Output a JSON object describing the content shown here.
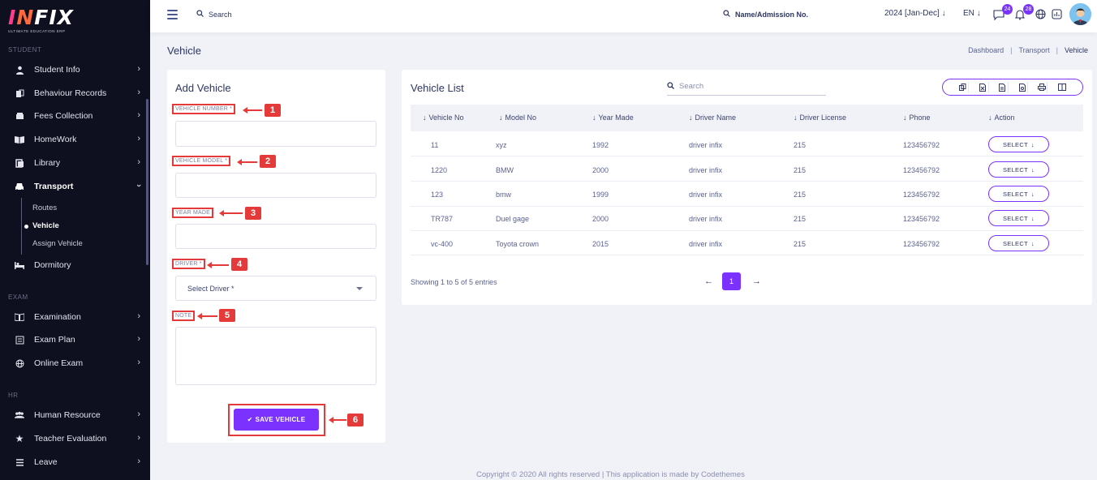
{
  "brand": {
    "name_part1": "I",
    "name_part2": "N",
    "name_rest": "FIX",
    "tagline": "ULTIMATE EDUCATION ERP"
  },
  "sidebar": {
    "sections": {
      "student": "STUDENT",
      "exam": "EXAM",
      "hr": "HR"
    },
    "items": [
      {
        "label": "Student Info",
        "icon": "student-icon"
      },
      {
        "label": "Behaviour Records",
        "icon": "records-icon"
      },
      {
        "label": "Fees Collection",
        "icon": "fees-icon"
      },
      {
        "label": "HomeWork",
        "icon": "homework-icon"
      },
      {
        "label": "Library",
        "icon": "library-icon"
      },
      {
        "label": "Transport",
        "icon": "transport-icon"
      },
      {
        "label": "Dormitory",
        "icon": "dormitory-icon"
      },
      {
        "label": "Examination",
        "icon": "exam-icon"
      },
      {
        "label": "Exam Plan",
        "icon": "exam-plan-icon"
      },
      {
        "label": "Online Exam",
        "icon": "online-exam-icon"
      },
      {
        "label": "Human Resource",
        "icon": "hr-icon"
      },
      {
        "label": "Teacher Evaluation",
        "icon": "star-icon"
      },
      {
        "label": "Leave",
        "icon": "leave-icon"
      }
    ],
    "transport_sub": [
      {
        "label": "Routes"
      },
      {
        "label": "Vehicle"
      },
      {
        "label": "Assign Vehicle"
      }
    ]
  },
  "topbar": {
    "search_label": "Search",
    "name_search_label": "Name/Admission No.",
    "academic_year": "2024 [Jan-Dec]",
    "language": "EN",
    "messages_count": "24",
    "notifications_count": "28"
  },
  "page": {
    "title": "Vehicle",
    "breadcrumb": [
      "Dashboard",
      "Transport",
      "Vehicle"
    ]
  },
  "form": {
    "title": "Add Vehicle",
    "fields": {
      "vehicle_number": "VEHICLE NUMBER *",
      "vehicle_model": "VEHICLE MODEL *",
      "year_made": "YEAR MADE",
      "driver": "DRIVER *",
      "note": "NOTE"
    },
    "driver_placeholder": "Select Driver *",
    "save_label": "SAVE VEHICLE",
    "annotation_numbers": [
      "1",
      "2",
      "3",
      "4",
      "5",
      "6"
    ]
  },
  "list": {
    "title": "Vehicle List",
    "search_placeholder": "Search",
    "export_buttons": [
      "copy-icon",
      "excel-icon",
      "csv-icon",
      "pdf-icon",
      "print-icon",
      "columns-icon"
    ],
    "columns": [
      "Vehicle No",
      "Model No",
      "Year Made",
      "Driver Name",
      "Driver License",
      "Phone",
      "Action"
    ],
    "rows": [
      {
        "vehicle_no": "11",
        "model_no": "xyz",
        "year": "1992",
        "driver": "driver infix",
        "license": "215",
        "phone": "123456792",
        "action": "SELECT"
      },
      {
        "vehicle_no": "1220",
        "model_no": "BMW",
        "year": "2000",
        "driver": "driver infix",
        "license": "215",
        "phone": "123456792",
        "action": "SELECT"
      },
      {
        "vehicle_no": "123",
        "model_no": "bmw",
        "year": "1999",
        "driver": "driver infix",
        "license": "215",
        "phone": "123456792",
        "action": "SELECT"
      },
      {
        "vehicle_no": "TR787",
        "model_no": "Duel gage",
        "year": "2000",
        "driver": "driver infix",
        "license": "215",
        "phone": "123456792",
        "action": "SELECT"
      },
      {
        "vehicle_no": "vc-400",
        "model_no": "Toyota crown",
        "year": "2015",
        "driver": "driver infix",
        "license": "215",
        "phone": "123456792",
        "action": "SELECT"
      }
    ],
    "showing": "Showing 1 to 5 of 5 entries",
    "current_page": "1"
  },
  "footer": {
    "text": "Copyright © 2020 All rights reserved | This application is made by Codethemes"
  },
  "colors": {
    "accent": "#7c32ff",
    "sidebar_bg": "#0e0f1f",
    "annotation_red": "#e53a3a"
  }
}
